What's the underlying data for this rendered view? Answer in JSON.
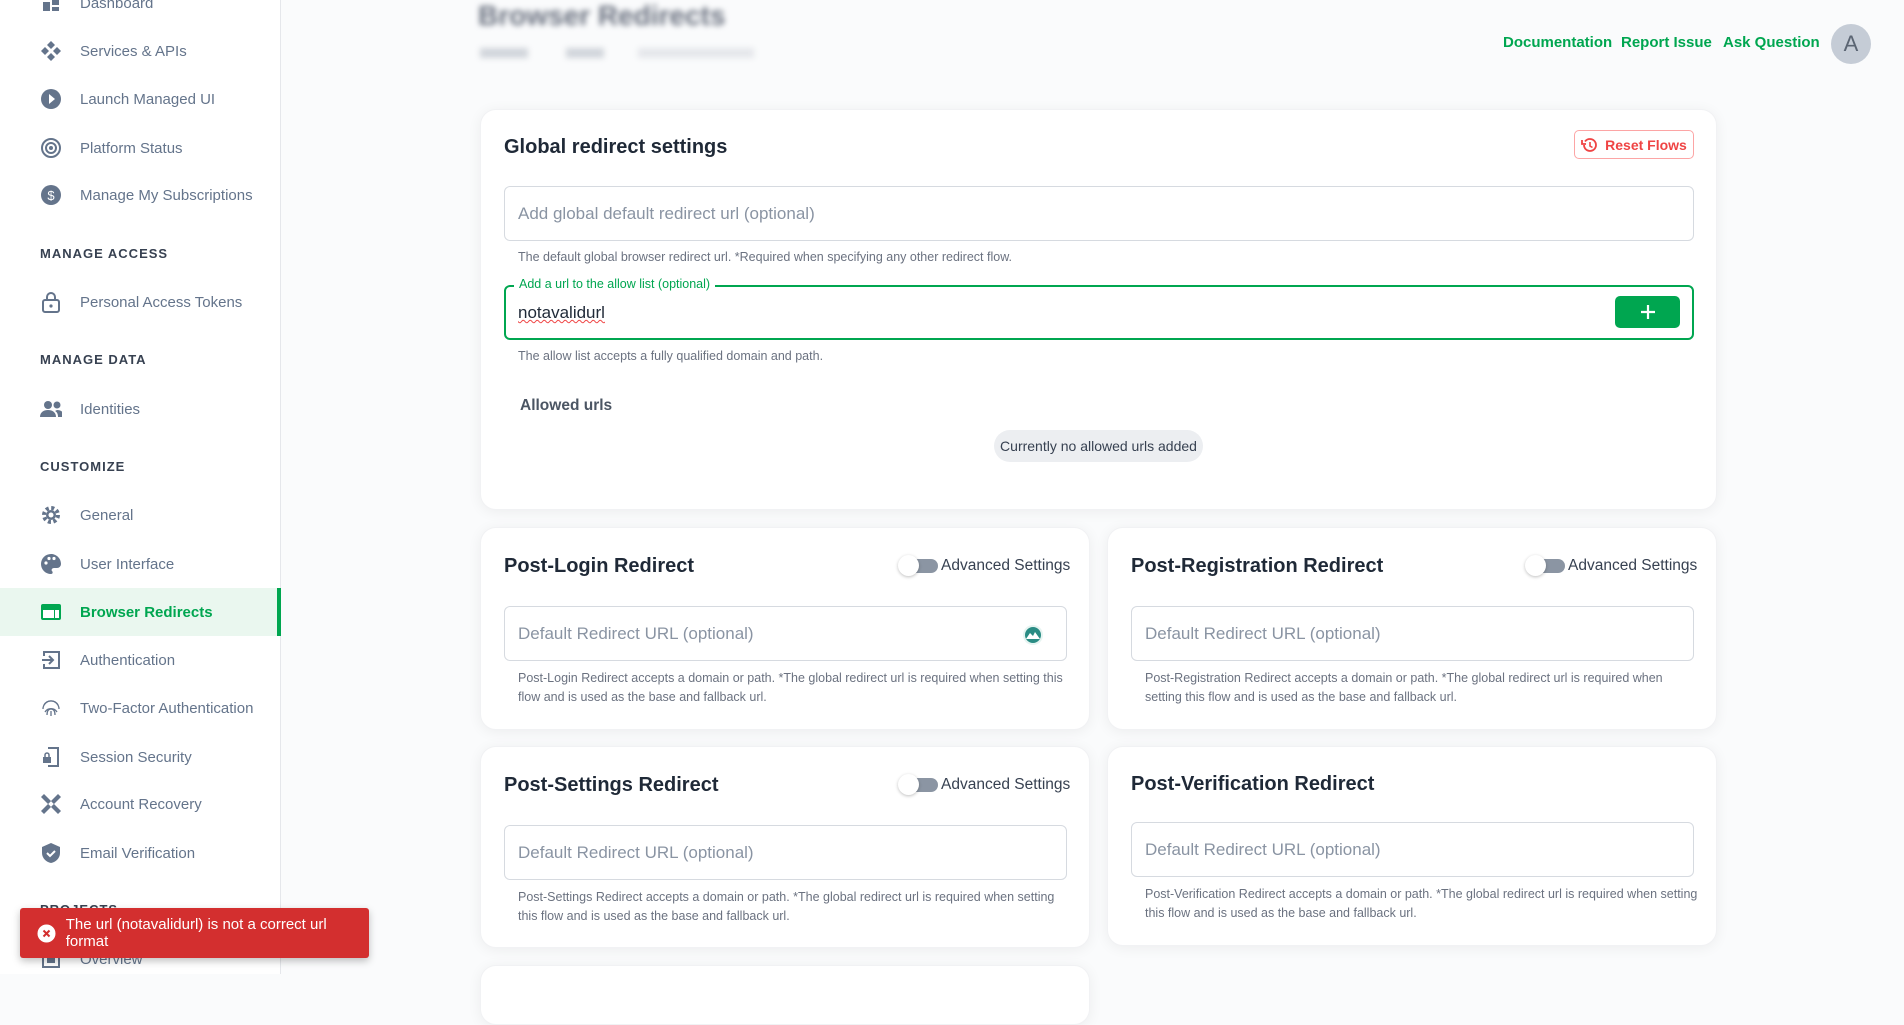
{
  "sidebar": {
    "items": [
      {
        "label": "Dashboard",
        "icon": "dashboard-icon"
      },
      {
        "label": "Services & APIs",
        "icon": "services-icon"
      },
      {
        "label": "Launch Managed UI",
        "icon": "play-icon"
      },
      {
        "label": "Platform Status",
        "icon": "status-icon"
      },
      {
        "label": "Manage My Subscriptions",
        "icon": "dollar-icon"
      },
      {
        "label": "Personal Access Tokens",
        "icon": "lock-icon"
      },
      {
        "label": "Identities",
        "icon": "people-icon"
      },
      {
        "label": "General",
        "icon": "gear-icon"
      },
      {
        "label": "User Interface",
        "icon": "palette-icon"
      },
      {
        "label": "Browser Redirects",
        "icon": "browser-icon",
        "active": true
      },
      {
        "label": "Authentication",
        "icon": "login-icon"
      },
      {
        "label": "Two-Factor Authentication",
        "icon": "fingerprint-icon"
      },
      {
        "label": "Session Security",
        "icon": "phone-lock-icon"
      },
      {
        "label": "Account Recovery",
        "icon": "bandage-icon"
      },
      {
        "label": "Email Verification",
        "icon": "shield-check-icon"
      },
      {
        "label": "Overview",
        "icon": "overview-icon"
      }
    ],
    "sections": [
      "MANAGE ACCESS",
      "MANAGE DATA",
      "CUSTOMIZE",
      "PROJECTS"
    ]
  },
  "header": {
    "title": "Browser Redirects",
    "links": [
      "Documentation",
      "Report Issue",
      "Ask Question"
    ],
    "avatar": "A"
  },
  "global": {
    "title": "Global redirect settings",
    "reset_label": "Reset Flows",
    "default_placeholder": "Add global default redirect url (optional)",
    "default_help": "The default global browser redirect url. *Required when specifying any other redirect flow.",
    "allow_label": "Add a url to the allow list (optional)",
    "allow_value": "notavalidurl",
    "allow_help": "The allow list accepts a fully qualified domain and path.",
    "allowed_title": "Allowed urls",
    "empty_chip": "Currently no allowed urls added"
  },
  "flows": [
    {
      "title": "Post-Login Redirect",
      "toggle": "Advanced Settings",
      "placeholder": "Default Redirect URL (optional)",
      "help1": "Post-Login Redirect accepts a domain or path. *The global redirect url is required when setting this",
      "help2": "flow and is used as the base and fallback url."
    },
    {
      "title": "Post-Registration Redirect",
      "toggle": "Advanced Settings",
      "placeholder": "Default Redirect URL (optional)",
      "help1": "Post-Registration Redirect accepts a domain or path. *The global redirect url is required when",
      "help2": "setting this flow and is used as the base and fallback url."
    },
    {
      "title": "Post-Settings Redirect",
      "toggle": "Advanced Settings",
      "placeholder": "Default Redirect URL (optional)",
      "help1": "Post-Settings Redirect accepts a domain or path. *The global redirect url is required when setting",
      "help2": "this flow and is used as the base and fallback url."
    },
    {
      "title": "Post-Verification Redirect",
      "placeholder": "Default Redirect URL (optional)",
      "help1": "Post-Verification Redirect accepts a domain or path. *The global redirect url is required when setting",
      "help2": "this flow and is used as the base and fallback url."
    }
  ],
  "toast": {
    "message": "The url (notavalidurl) is not a correct url format",
    "color": "#d32f2f"
  },
  "colors": {
    "accent": "#00a650",
    "danger": "#ef4444"
  }
}
